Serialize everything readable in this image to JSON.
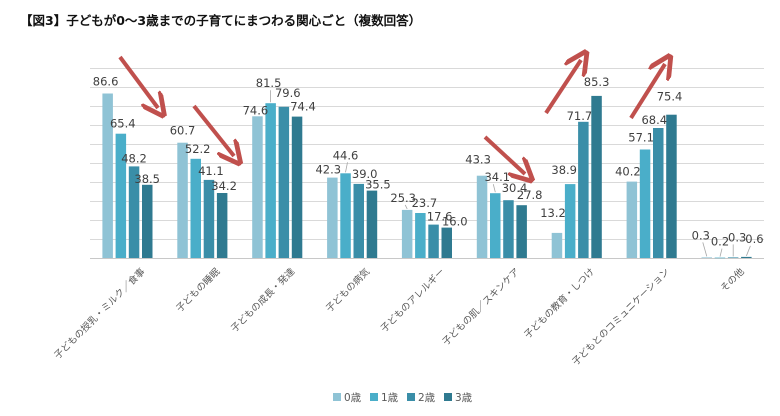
{
  "title": "【図3】子どもが0～3歳までの子育てにまつわる関心ごと（複数回答）",
  "chart_data": {
    "type": "bar",
    "title": "【図3】子どもが0～3歳までの子育てにまつわる関心ごと（複数回答）",
    "xlabel": "",
    "ylabel": "",
    "ylim": [
      0,
      100
    ],
    "grid": true,
    "gridline_step": 10,
    "y_tick_labels_shown": false,
    "legend_position": "bottom",
    "categories": [
      "子どもの授乳・ミルク／食事",
      "子どもの睡眠",
      "子どもの成長・発達",
      "子どもの病気",
      "子どものアレルギー",
      "子どもの肌／スキンケア",
      "子どもの教育・しつけ",
      "子どもとのコミュニケーション",
      "その他"
    ],
    "series": [
      {
        "name": "0歳",
        "color": "#8fc3d5",
        "values": [
          86.6,
          60.7,
          74.6,
          42.3,
          25.3,
          43.3,
          13.2,
          40.2,
          0.3
        ]
      },
      {
        "name": "1歳",
        "color": "#4aaec9",
        "values": [
          65.4,
          52.2,
          81.5,
          44.6,
          23.7,
          34.1,
          38.9,
          57.1,
          0.2
        ]
      },
      {
        "name": "2歳",
        "color": "#3a8ea8",
        "values": [
          48.2,
          41.1,
          79.6,
          39.0,
          17.6,
          30.4,
          71.7,
          68.4,
          0.3
        ]
      },
      {
        "name": "3歳",
        "color": "#2f7a90",
        "values": [
          38.5,
          34.2,
          74.4,
          35.5,
          16.0,
          27.8,
          85.3,
          75.4,
          0.6
        ]
      }
    ],
    "annotations": [
      {
        "type": "arrow",
        "direction": "down",
        "category": "子どもの授乳・ミルク／食事",
        "color": "#c0504d"
      },
      {
        "type": "arrow",
        "direction": "down",
        "category": "子どもの睡眠",
        "color": "#c0504d"
      },
      {
        "type": "arrow",
        "direction": "down",
        "category": "子どもの肌／スキンケア",
        "color": "#c0504d"
      },
      {
        "type": "arrow",
        "direction": "up",
        "category": "子どもの教育・しつけ",
        "color": "#c0504d"
      },
      {
        "type": "arrow",
        "direction": "up",
        "category": "子どもとのコミュニケーション",
        "color": "#c0504d"
      }
    ]
  }
}
